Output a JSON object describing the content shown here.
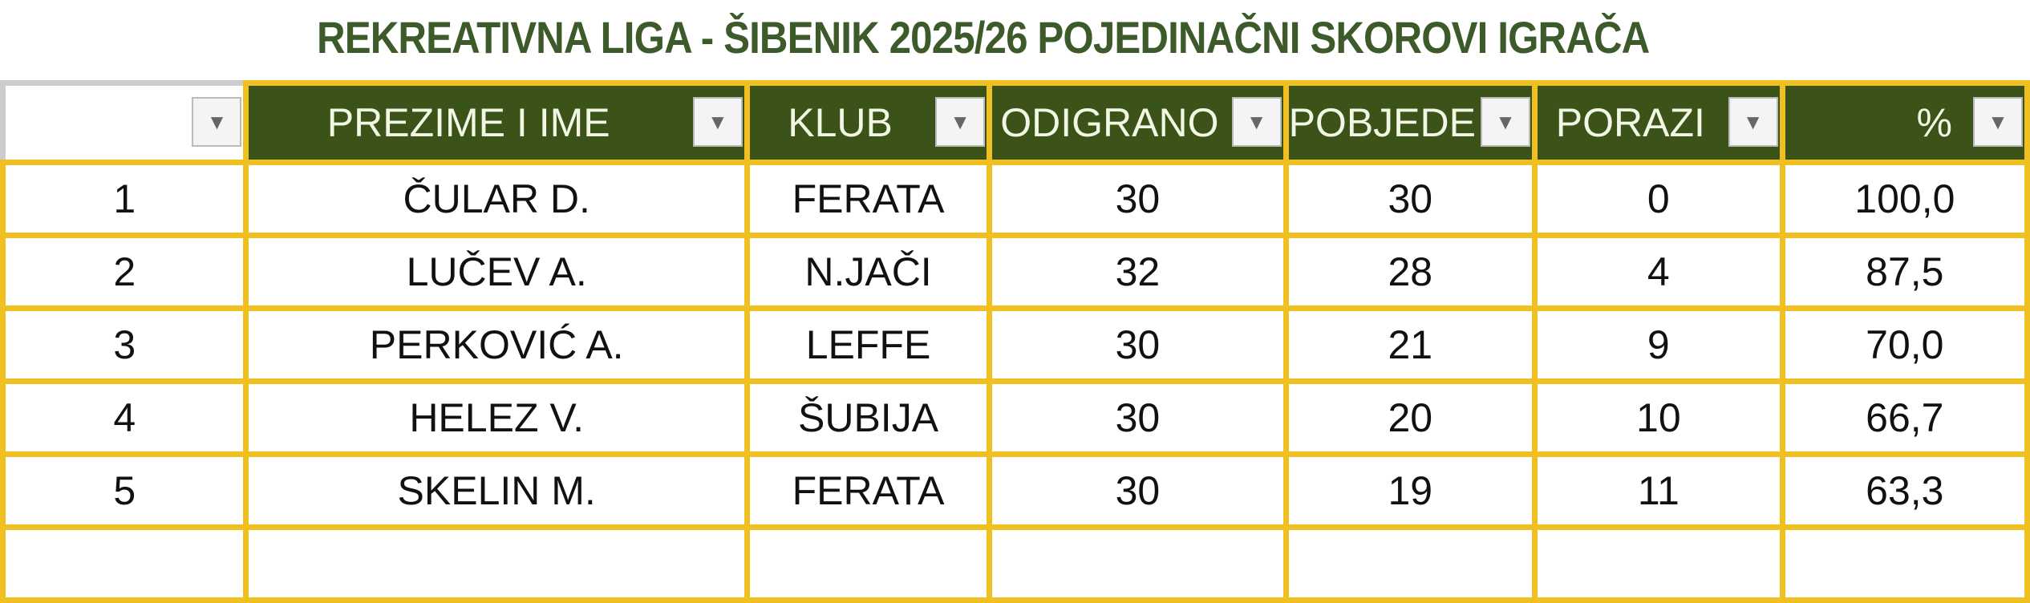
{
  "title": "REKREATIVNA LIGA - ŠIBENIK 2025/26 POJEDINAČNI SKOROVI IGRAČA",
  "columns": [
    "",
    "PREZIME I IME",
    "KLUB",
    "ODIGRANO",
    "POBJEDE",
    "PORAZI",
    "%"
  ],
  "filter_icon": "▼",
  "colors": {
    "header_bg": "#3b5218",
    "border": "#f0c020",
    "title": "#3d5a2a"
  },
  "rows": [
    [
      "1",
      "ČULAR D.",
      "FERATA",
      "30",
      "30",
      "0",
      "100,0"
    ],
    [
      "2",
      "LUČEV A.",
      "N.JAČI",
      "32",
      "28",
      "4",
      "87,5"
    ],
    [
      "3",
      "PERKOVIĆ A.",
      "LEFFE",
      "30",
      "21",
      "9",
      "70,0"
    ],
    [
      "4",
      "HELEZ V.",
      "ŠUBIJA",
      "30",
      "20",
      "10",
      "66,7"
    ],
    [
      "5",
      "SKELIN M.",
      "FERATA",
      "30",
      "19",
      "11",
      "63,3"
    ]
  ]
}
